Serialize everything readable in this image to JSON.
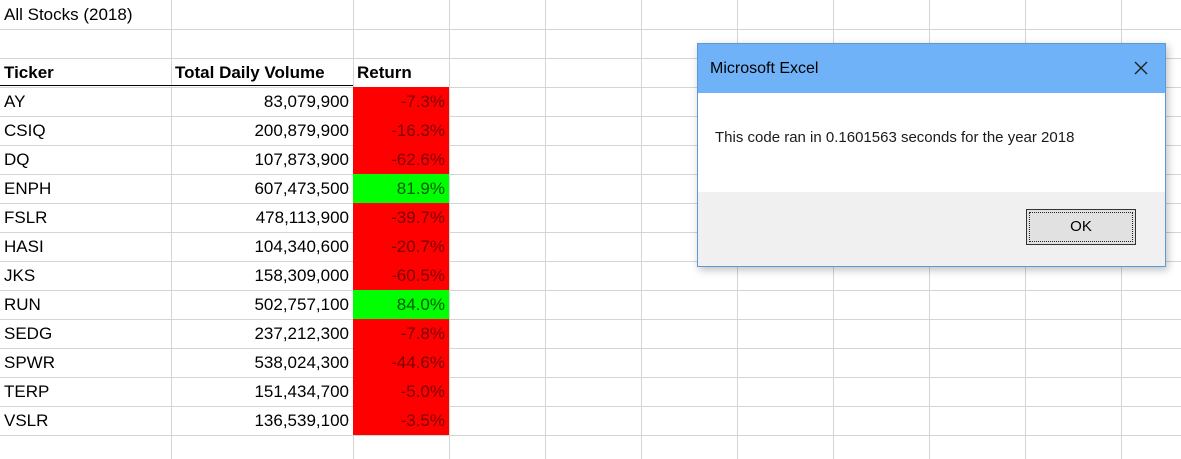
{
  "sheet": {
    "title": "All Stocks (2018)",
    "headers": {
      "ticker": "Ticker",
      "volume": "Total Daily Volume",
      "return": "Return"
    },
    "rows": [
      {
        "ticker": "AY",
        "volume": "83,079,900",
        "return": "-7.3%",
        "positive": false
      },
      {
        "ticker": "CSIQ",
        "volume": "200,879,900",
        "return": "-16.3%",
        "positive": false
      },
      {
        "ticker": "DQ",
        "volume": "107,873,900",
        "return": "-62.6%",
        "positive": false
      },
      {
        "ticker": "ENPH",
        "volume": "607,473,500",
        "return": "81.9%",
        "positive": true
      },
      {
        "ticker": "FSLR",
        "volume": "478,113,900",
        "return": "-39.7%",
        "positive": false
      },
      {
        "ticker": "HASI",
        "volume": "104,340,600",
        "return": "-20.7%",
        "positive": false
      },
      {
        "ticker": "JKS",
        "volume": "158,309,000",
        "return": "-60.5%",
        "positive": false
      },
      {
        "ticker": "RUN",
        "volume": "502,757,100",
        "return": "84.0%",
        "positive": true
      },
      {
        "ticker": "SEDG",
        "volume": "237,212,300",
        "return": "-7.8%",
        "positive": false
      },
      {
        "ticker": "SPWR",
        "volume": "538,024,300",
        "return": "-44.6%",
        "positive": false
      },
      {
        "ticker": "TERP",
        "volume": "151,434,700",
        "return": "-5.0%",
        "positive": false
      },
      {
        "ticker": "VSLR",
        "volume": "136,539,100",
        "return": "-3.5%",
        "positive": false
      }
    ]
  },
  "dialog": {
    "title": "Microsoft Excel",
    "message": "This code ran in 0.1601563 seconds for the year 2018",
    "ok_label": "OK",
    "close_icon": "close-icon"
  },
  "colors": {
    "negative_fill": "#ff0000",
    "positive_fill": "#00ff00",
    "dialog_titlebar": "#6fb2f7"
  }
}
